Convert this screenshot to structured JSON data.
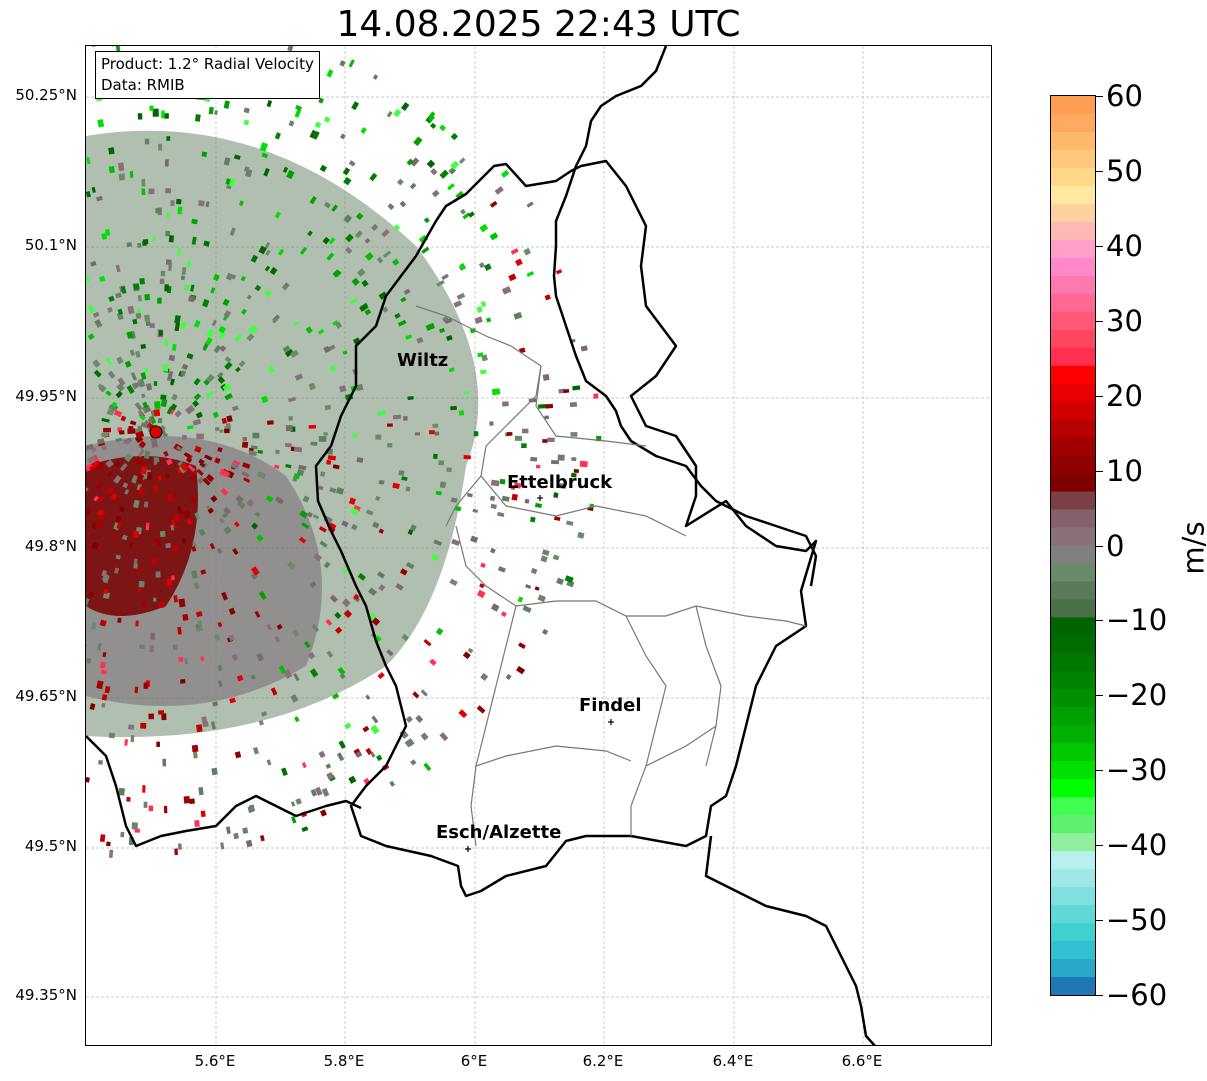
{
  "title": "14.08.2025 22:43 UTC",
  "info_box": {
    "product": "Product: 1.2° Radial Velocity",
    "data": "Data: RMIB"
  },
  "map": {
    "lat_ticks": [
      "50.25°N",
      "50.1°N",
      "49.95°N",
      "49.8°N",
      "49.65°N",
      "49.5°N",
      "49.35°N"
    ],
    "lon_ticks": [
      "5.6°E",
      "5.8°E",
      "6°E",
      "6.2°E",
      "6.4°E",
      "6.6°E"
    ],
    "cities": [
      {
        "name": "Wiltz"
      },
      {
        "name": "Ettelbruck"
      },
      {
        "name": "Findel"
      },
      {
        "name": "Esch/Alzette"
      }
    ],
    "radar_site_color": "#e00000"
  },
  "colorbar": {
    "unit": "m/s",
    "min": -60,
    "max": 60,
    "ticks": [
      "60",
      "50",
      "40",
      "30",
      "20",
      "10",
      "0",
      "−10",
      "−20",
      "−30",
      "−40",
      "−50",
      "−60"
    ],
    "colors": {
      "approaching_dark": "#006400",
      "approaching_bright": "#00ff00",
      "receding_dark": "#800000",
      "receding_bright": "#ff0000",
      "near_zero": "#808080",
      "cyan": "#30e0e0",
      "blue": "#1f77b4",
      "orange": "#ff9e50",
      "pink": "#ff88cc"
    }
  }
}
